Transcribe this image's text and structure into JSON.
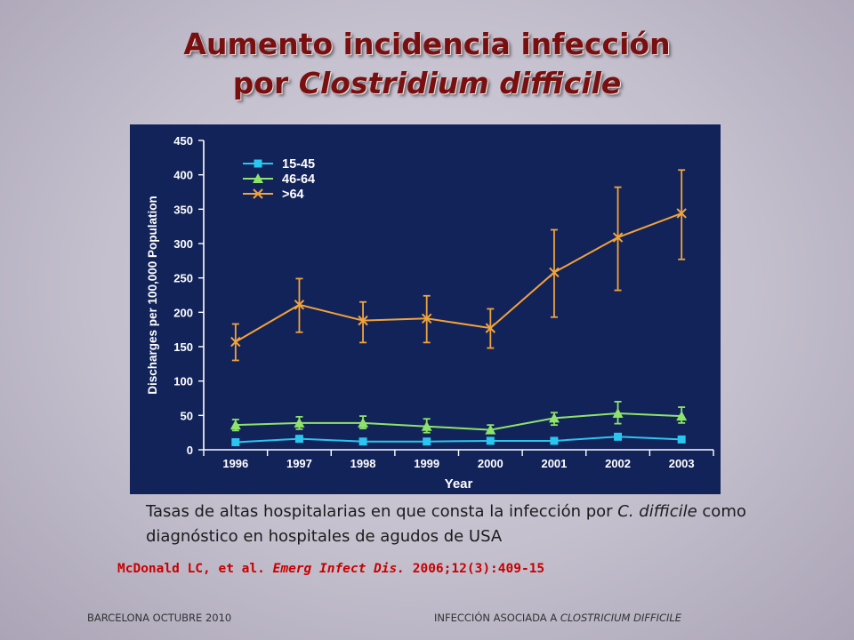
{
  "slide": {
    "title_line1": "Aumento incidencia infección",
    "title_line2_prefix": "por ",
    "title_line2_italic": "Clostridium difficile",
    "caption_part1": "Tasas de altas hospitalarias en que consta la infección por ",
    "caption_italic": "C. difficile",
    "caption_part2": " como diagnóstico en hospitales de agudos de USA",
    "citation_part1": "McDonald LC, et al. ",
    "citation_italic": "Emerg Infect Dis.",
    "citation_part2": " 2006;12(3):409-15",
    "footer_left": "BARCELONA OCTUBRE 2010",
    "footer_right_prefix": "INFECCIÓN ASOCIADA A ",
    "footer_right_italic": "CLOSTRICIUM DIFFICILE"
  },
  "colors": {
    "background_panel": "#12235a",
    "series_15_45": "#29c6f0",
    "series_46_64": "#8ee36a",
    "series_gt64": "#f2a33a",
    "title": "#7a0f10",
    "citation": "#c80000"
  },
  "chart_data": {
    "type": "line",
    "title": "",
    "xlabel": "Year",
    "ylabel": "Discharges per 100,000 Population",
    "ylim": [
      0,
      450
    ],
    "yticks": [
      0,
      50,
      100,
      150,
      200,
      250,
      300,
      350,
      400,
      450
    ],
    "categories": [
      "1996",
      "1997",
      "1998",
      "1999",
      "2000",
      "2001",
      "2002",
      "2003"
    ],
    "grid": false,
    "legend_position": "top-left",
    "series": [
      {
        "name": "15-45",
        "marker": "square",
        "color": "#29c6f0",
        "values": [
          11,
          16,
          12,
          12,
          13,
          13,
          19,
          15
        ]
      },
      {
        "name": "46-64",
        "marker": "triangle",
        "color": "#8ee36a",
        "values": [
          36,
          39,
          39,
          34,
          29,
          46,
          53,
          49
        ],
        "error_low": [
          28,
          30,
          31,
          25,
          24,
          36,
          38,
          39
        ],
        "error_high": [
          44,
          48,
          49,
          45,
          36,
          54,
          70,
          62
        ]
      },
      {
        "name": ">64",
        "marker": "x",
        "color": "#f2a33a",
        "values": [
          157,
          211,
          188,
          191,
          177,
          258,
          309,
          344
        ],
        "error_low": [
          130,
          171,
          156,
          156,
          148,
          193,
          232,
          277
        ],
        "error_high": [
          183,
          249,
          215,
          224,
          205,
          320,
          382,
          407
        ]
      }
    ]
  }
}
